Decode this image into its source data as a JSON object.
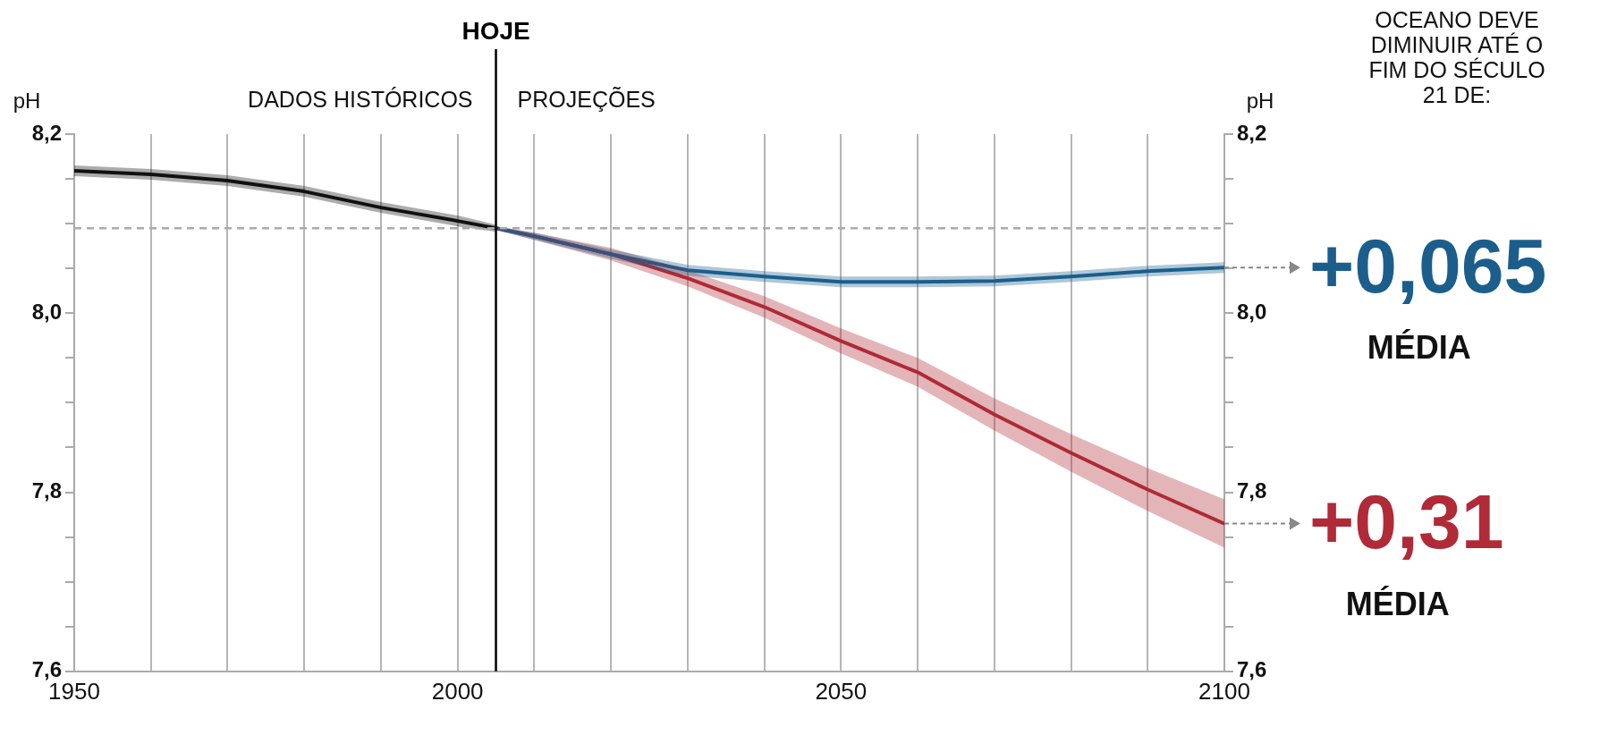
{
  "chart_data": {
    "type": "line",
    "title": "OCEANO DEVE DIMINUIR ATÉ O FIM DO SÉCULO 21 DE:",
    "ylabel": "pH",
    "y2label": "pH",
    "xlim": [
      1950,
      2100
    ],
    "xticks": [
      1950,
      {
        "value": 1960,
        "label": null
      },
      {
        "value": 1970,
        "label": null
      },
      {
        "value": 1980,
        "label": null
      },
      {
        "value": 1990,
        "label": null
      },
      2000,
      {
        "value": 2010,
        "label": null
      },
      {
        "value": 2020,
        "label": null
      },
      {
        "value": 2030,
        "label": null
      },
      {
        "value": 2040,
        "label": null
      },
      2050,
      {
        "value": 2060,
        "label": null
      },
      {
        "value": 2070,
        "label": null
      },
      {
        "value": 2080,
        "label": null
      },
      {
        "value": 2090,
        "label": null
      },
      2100
    ],
    "ylim": [
      7.6,
      8.2
    ],
    "yticks": [
      {
        "value": 7.6,
        "label": "7,6"
      },
      {
        "value": 7.65,
        "label": null
      },
      {
        "value": 7.7,
        "label": null
      },
      {
        "value": 7.75,
        "label": null
      },
      {
        "value": 7.8,
        "label": "7,8"
      },
      {
        "value": 7.85,
        "label": null
      },
      {
        "value": 7.9,
        "label": null
      },
      {
        "value": 7.95,
        "label": null
      },
      {
        "value": 8.0,
        "label": "8,0"
      },
      {
        "value": 8.05,
        "label": null
      },
      {
        "value": 8.1,
        "label": null
      },
      {
        "value": 8.15,
        "label": null
      },
      {
        "value": 8.2,
        "label": "8,2"
      }
    ],
    "y2lim": [
      7.6,
      8.2
    ],
    "y2ticks": [
      {
        "value": 7.6,
        "label": "7,6"
      },
      {
        "value": 7.65,
        "label": null
      },
      {
        "value": 7.7,
        "label": null
      },
      {
        "value": 7.75,
        "label": null
      },
      {
        "value": 7.8,
        "label": "7,8"
      },
      {
        "value": 7.85,
        "label": null
      },
      {
        "value": 7.9,
        "label": null
      },
      {
        "value": 7.95,
        "label": null
      },
      {
        "value": 8.0,
        "label": "8,0"
      },
      {
        "value": 8.05,
        "label": null
      },
      {
        "value": 8.1,
        "label": null
      },
      {
        "value": 8.15,
        "label": null
      },
      {
        "value": 8.2,
        "label": "8,2"
      }
    ],
    "grid": "x",
    "legend": false,
    "marker": "none",
    "line_style": "solid",
    "series": [
      {
        "color": "#111111",
        "x": [
          1950,
          1960,
          1970,
          1980,
          1990,
          2000,
          2005
        ],
        "values": [
          8.159,
          8.155,
          8.148,
          8.136,
          8.118,
          8.103,
          8.095
        ],
        "lower": [
          8.153,
          8.149,
          8.142,
          8.13,
          8.112,
          8.097,
          8.091
        ],
        "upper": [
          8.165,
          8.161,
          8.154,
          8.142,
          8.124,
          8.109,
          8.099
        ]
      },
      {
        "color": "#1b5e8c",
        "x": [
          2005,
          2010,
          2020,
          2030,
          2040,
          2050,
          2060,
          2070,
          2080,
          2090,
          2100
        ],
        "values": [
          8.095,
          8.086,
          8.066,
          8.048,
          8.041,
          8.035,
          8.035,
          8.036,
          8.041,
          8.047,
          8.051
        ],
        "lower": [
          8.093,
          8.082,
          8.061,
          8.042,
          8.035,
          8.029,
          8.029,
          8.03,
          8.035,
          8.041,
          8.045
        ],
        "upper": [
          8.097,
          8.09,
          8.071,
          8.054,
          8.047,
          8.041,
          8.041,
          8.042,
          8.047,
          8.053,
          8.057
        ]
      },
      {
        "color": "#b02a37",
        "x": [
          2005,
          2010,
          2020,
          2030,
          2040,
          2050,
          2060,
          2070,
          2080,
          2090,
          2100
        ],
        "values": [
          8.095,
          8.086,
          8.066,
          8.039,
          8.007,
          7.969,
          7.934,
          7.887,
          7.844,
          7.803,
          7.765
        ],
        "lower": [
          8.093,
          8.082,
          8.059,
          8.03,
          7.995,
          7.955,
          7.918,
          7.869,
          7.823,
          7.779,
          7.738
        ],
        "upper": [
          8.097,
          8.09,
          8.073,
          8.048,
          8.019,
          7.983,
          7.95,
          7.905,
          7.865,
          7.827,
          7.792
        ]
      }
    ],
    "ref_lines": [
      {
        "axis": "x",
        "value": 2005,
        "label": "HOJE",
        "color": "#000000"
      },
      {
        "axis": "y",
        "value": 8.095,
        "color": "#aaaaaa",
        "line_style": "dashed"
      }
    ],
    "annotations": [
      "DADOS HISTÓRICOS",
      "PROJEÇÕES",
      {
        "text": "+0,065\nMÉDIA",
        "x": 2100,
        "y": 8.051
      },
      {
        "text": "+0,31\nMÉDIA",
        "x": 2100,
        "y": 7.765
      }
    ]
  }
}
